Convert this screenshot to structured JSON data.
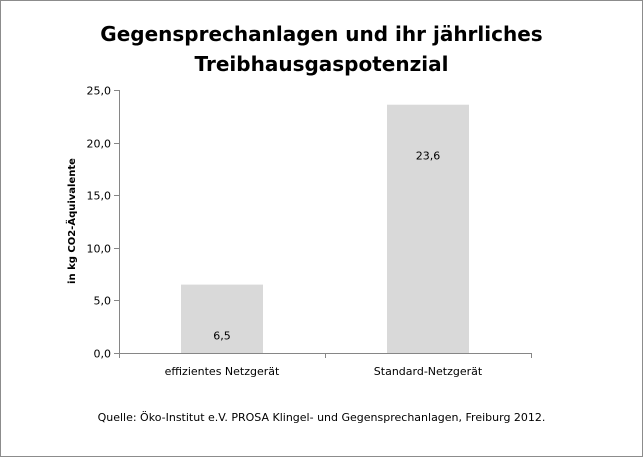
{
  "chart_data": {
    "type": "bar",
    "title_lines": [
      "Gegensprechanlagen und ihr jährliches",
      "Treibhausgaspotenzial"
    ],
    "ylabel": "in kg CO2-Äquivalente",
    "xlabel": "",
    "categories": [
      "effizientes Netzgerät",
      "Standard-Netzgerät"
    ],
    "values": [
      6.5,
      23.6
    ],
    "data_labels": [
      "6,5",
      "23,6"
    ],
    "ylim": [
      0,
      25
    ],
    "yticks": [
      0,
      5,
      10,
      15,
      20,
      25
    ],
    "ytick_labels": [
      "0,0",
      "5,0",
      "10,0",
      "15,0",
      "20,0",
      "25,0"
    ],
    "grid": false,
    "legend": "none",
    "bar_color": "#d9d9d9",
    "axis_color": "#868686"
  },
  "source": "Quelle: Öko-Institut e.V.  PROSA Klingel- und Gegensprechanlagen, Freiburg 2012."
}
